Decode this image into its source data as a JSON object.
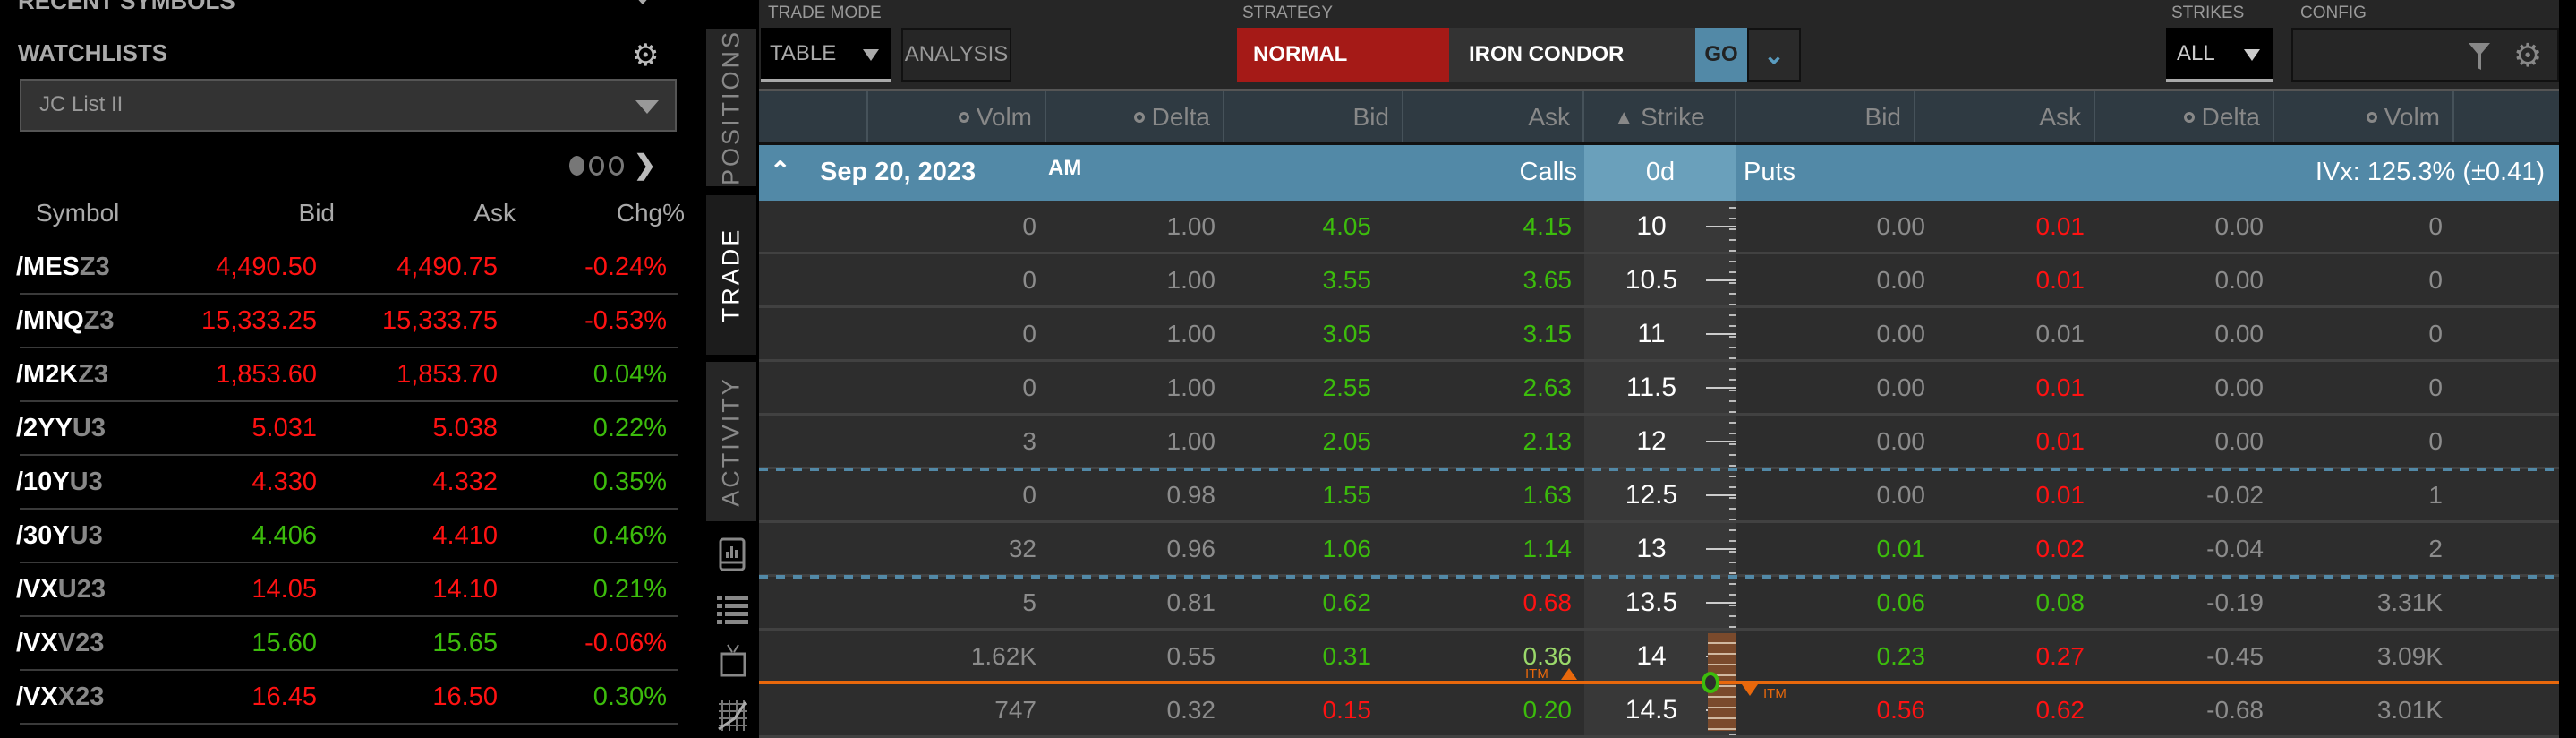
{
  "recent_symbols": {
    "title": "RECENT SYMBOLS"
  },
  "watchlists": {
    "title": "WATCHLISTS",
    "selected_list": "JC List II",
    "page": 1,
    "pages": 3,
    "columns": [
      "Symbol",
      "Bid",
      "Ask",
      "Chg%"
    ],
    "rows": [
      {
        "root": "/MES",
        "suffix": "Z3",
        "bid": "4,490.50",
        "bid_dir": "down",
        "ask": "4,490.75",
        "ask_dir": "down",
        "chg": "-0.24%",
        "chg_dir": "down"
      },
      {
        "root": "/MNQ",
        "suffix": "Z3",
        "bid": "15,333.25",
        "bid_dir": "down",
        "ask": "15,333.75",
        "ask_dir": "down",
        "chg": "-0.53%",
        "chg_dir": "down"
      },
      {
        "root": "/M2K",
        "suffix": "Z3",
        "bid": "1,853.60",
        "bid_dir": "down",
        "ask": "1,853.70",
        "ask_dir": "down",
        "chg": "0.04%",
        "chg_dir": "up"
      },
      {
        "root": "/2YY",
        "suffix": "U3",
        "bid": "5.031",
        "bid_dir": "down",
        "ask": "5.038",
        "ask_dir": "down",
        "chg": "0.22%",
        "chg_dir": "up"
      },
      {
        "root": "/10Y",
        "suffix": "U3",
        "bid": "4.330",
        "bid_dir": "down",
        "ask": "4.332",
        "ask_dir": "down",
        "chg": "0.35%",
        "chg_dir": "up"
      },
      {
        "root": "/30Y",
        "suffix": "U3",
        "bid": "4.406",
        "bid_dir": "up",
        "ask": "4.410",
        "ask_dir": "down",
        "chg": "0.46%",
        "chg_dir": "up"
      },
      {
        "root": "/VX",
        "suffix": "U23",
        "bid": "14.05",
        "bid_dir": "down",
        "ask": "14.10",
        "ask_dir": "down",
        "chg": "0.21%",
        "chg_dir": "up"
      },
      {
        "root": "/VX",
        "suffix": "V23",
        "bid": "15.60",
        "bid_dir": "up",
        "ask": "15.65",
        "ask_dir": "up",
        "chg": "-0.06%",
        "chg_dir": "down"
      },
      {
        "root": "/VX",
        "suffix": "X23",
        "bid": "16.45",
        "bid_dir": "down",
        "ask": "16.50",
        "ask_dir": "down",
        "chg": "0.30%",
        "chg_dir": "up"
      }
    ]
  },
  "side_tabs": [
    {
      "label": "POSITIONS",
      "active": false
    },
    {
      "label": "TRADE",
      "active": true
    },
    {
      "label": "ACTIVITY",
      "active": false
    }
  ],
  "side_icons": [
    "bar-chart-icon",
    "list-icon",
    "tv-icon",
    "grid-chart-icon"
  ],
  "toolbar": {
    "trade_mode_label": "TRADE MODE",
    "trade_mode_value": "TABLE",
    "analysis_label": "ANALYSIS",
    "strategy_label": "STRATEGY",
    "strategy_normal": "NORMAL",
    "strategy_type": "IRON CONDOR",
    "go_label": "GO",
    "strikes_label": "STRIKES",
    "strikes_value": "ALL",
    "config_label": "CONFIG"
  },
  "columns": {
    "calls": [
      "Volm",
      "Delta",
      "Bid",
      "Ask"
    ],
    "strike": "Strike",
    "puts": [
      "Bid",
      "Ask",
      "Delta",
      "Volm"
    ]
  },
  "expiration": {
    "date": "Sep 20, 2023",
    "session": "AM",
    "calls_label": "Calls",
    "days": "0d",
    "puts_label": "Puts",
    "ivx": "IVx: 125.3% (±0.41)"
  },
  "colors": {
    "up": "#3cbc0c",
    "down": "#ff1212",
    "header": "#5289a7",
    "itm_line": "#e8680c",
    "normal": "#a51a17"
  },
  "chain": [
    {
      "strike": "10",
      "calls": [
        [
          "0",
          "n"
        ],
        [
          "1.00",
          "n"
        ],
        [
          "4.05",
          "g"
        ],
        [
          "4.15",
          "g"
        ]
      ],
      "puts": [
        [
          "0.00",
          "n"
        ],
        [
          "0.01",
          "r"
        ],
        [
          "0.00",
          "n"
        ],
        [
          "0",
          "n"
        ]
      ]
    },
    {
      "strike": "10.5",
      "calls": [
        [
          "0",
          "n"
        ],
        [
          "1.00",
          "n"
        ],
        [
          "3.55",
          "g"
        ],
        [
          "3.65",
          "g"
        ]
      ],
      "puts": [
        [
          "0.00",
          "n"
        ],
        [
          "0.01",
          "r"
        ],
        [
          "0.00",
          "n"
        ],
        [
          "0",
          "n"
        ]
      ]
    },
    {
      "strike": "11",
      "calls": [
        [
          "0",
          "n"
        ],
        [
          "1.00",
          "n"
        ],
        [
          "3.05",
          "g"
        ],
        [
          "3.15",
          "g"
        ]
      ],
      "puts": [
        [
          "0.00",
          "n"
        ],
        [
          "0.01",
          "n"
        ],
        [
          "0.00",
          "n"
        ],
        [
          "0",
          "n"
        ]
      ]
    },
    {
      "strike": "11.5",
      "calls": [
        [
          "0",
          "n"
        ],
        [
          "1.00",
          "n"
        ],
        [
          "2.55",
          "g"
        ],
        [
          "2.63",
          "g"
        ]
      ],
      "puts": [
        [
          "0.00",
          "n"
        ],
        [
          "0.01",
          "r"
        ],
        [
          "0.00",
          "n"
        ],
        [
          "0",
          "n"
        ]
      ]
    },
    {
      "strike": "12",
      "calls": [
        [
          "3",
          "n"
        ],
        [
          "1.00",
          "n"
        ],
        [
          "2.05",
          "g"
        ],
        [
          "2.13",
          "g"
        ]
      ],
      "puts": [
        [
          "0.00",
          "n"
        ],
        [
          "0.01",
          "r"
        ],
        [
          "0.00",
          "n"
        ],
        [
          "0",
          "n"
        ]
      ]
    },
    {
      "strike": "12.5",
      "calls": [
        [
          "0",
          "n"
        ],
        [
          "0.98",
          "n"
        ],
        [
          "1.55",
          "g"
        ],
        [
          "1.63",
          "g"
        ]
      ],
      "puts": [
        [
          "0.00",
          "n"
        ],
        [
          "0.01",
          "r"
        ],
        [
          "-0.02",
          "n"
        ],
        [
          "1",
          "n"
        ]
      ]
    },
    {
      "strike": "13",
      "calls": [
        [
          "32",
          "n"
        ],
        [
          "0.96",
          "n"
        ],
        [
          "1.06",
          "g"
        ],
        [
          "1.14",
          "g"
        ]
      ],
      "puts": [
        [
          "0.01",
          "g"
        ],
        [
          "0.02",
          "r"
        ],
        [
          "-0.04",
          "n"
        ],
        [
          "2",
          "n"
        ]
      ]
    },
    {
      "strike": "13.5",
      "calls": [
        [
          "5",
          "n"
        ],
        [
          "0.81",
          "n"
        ],
        [
          "0.62",
          "g"
        ],
        [
          "0.68",
          "r"
        ]
      ],
      "puts": [
        [
          "0.06",
          "g"
        ],
        [
          "0.08",
          "g"
        ],
        [
          "-0.19",
          "n"
        ],
        [
          "3.31K",
          "n"
        ]
      ]
    },
    {
      "strike": "14",
      "calls": [
        [
          "1.62K",
          "n"
        ],
        [
          "0.55",
          "n"
        ],
        [
          "0.31",
          "g"
        ],
        [
          "0.36",
          "lg"
        ]
      ],
      "puts": [
        [
          "0.23",
          "g"
        ],
        [
          "0.27",
          "r"
        ],
        [
          "-0.45",
          "n"
        ],
        [
          "3.09K",
          "n"
        ]
      ]
    },
    {
      "strike": "14.5",
      "calls": [
        [
          "747",
          "n"
        ],
        [
          "0.32",
          "n"
        ],
        [
          "0.15",
          "r"
        ],
        [
          "0.20",
          "g"
        ]
      ],
      "puts": [
        [
          "0.56",
          "r"
        ],
        [
          "0.62",
          "r"
        ],
        [
          "-0.68",
          "n"
        ],
        [
          "3.01K",
          "n"
        ]
      ]
    }
  ],
  "itm_label": "ITM"
}
